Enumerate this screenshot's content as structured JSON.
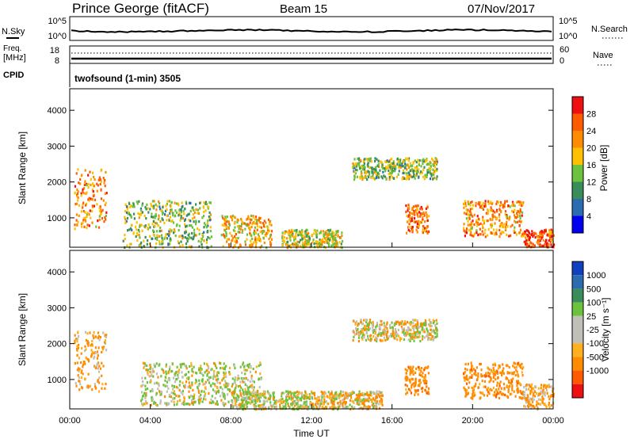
{
  "header": {
    "station": "Prince George (fitACF)",
    "beam": "Beam 15",
    "date": "07/Nov/2017"
  },
  "noise_panel": {
    "left_label": "N.Sky",
    "right_label": "N.Search",
    "left_ticks": [
      "10^5",
      "10^0"
    ],
    "right_ticks": [
      "10^5",
      "10^0"
    ]
  },
  "freq_panel": {
    "left_label_1": "Freq.",
    "left_label_2": "[MHz]",
    "right_label": "Nave",
    "left_ticks": [
      "18",
      "8"
    ],
    "right_ticks": [
      "60",
      "0"
    ],
    "cpid_label": "CPID",
    "cpid_value": "twofsound (1-min) 3505"
  },
  "colors": {
    "power": [
      "#0000ee",
      "#2b6cb0",
      "#3a8c5a",
      "#6cc23c",
      "#ffc000",
      "#ff8c00",
      "#ff5a00",
      "#ee1010"
    ],
    "velocity": [
      "#ee1010",
      "#ff5a00",
      "#ff8c00",
      "#ffb020",
      "#c0c0b8",
      "#c0c0b8",
      "#6cc23c",
      "#3a8c5a",
      "#2b6cb0",
      "#1040c0"
    ]
  },
  "chart_data": [
    {
      "type": "heatmap",
      "name": "power",
      "ylabel": "Slant Range [km]",
      "yticks": [
        "1000",
        "2000",
        "3000",
        "4000"
      ],
      "ylim": [
        180,
        4600
      ],
      "xlim": [
        0,
        24
      ],
      "xticks": [
        "00:00",
        "04:00",
        "08:00",
        "12:00",
        "16:00",
        "20:00",
        "00:00"
      ],
      "colorbar_label": "Power [dB]",
      "colorbar_ticks": [
        "4",
        "8",
        "12",
        "16",
        "20",
        "24",
        "28"
      ],
      "colorbar_range": [
        0,
        32
      ],
      "scatter_regions": [
        {
          "t": [
            0.2,
            1.8
          ],
          "r": [
            700,
            2400
          ],
          "power": 22
        },
        {
          "t": [
            2.6,
            7.0
          ],
          "r": [
            200,
            1500
          ],
          "power": 14
        },
        {
          "t": [
            7.5,
            10.0
          ],
          "r": [
            200,
            1100
          ],
          "power": 20
        },
        {
          "t": [
            10.5,
            13.5
          ],
          "r": [
            200,
            700
          ],
          "power": 16
        },
        {
          "t": [
            14.0,
            18.2
          ],
          "r": [
            2100,
            2700
          ],
          "power": 14
        },
        {
          "t": [
            16.6,
            17.8
          ],
          "r": [
            600,
            1400
          ],
          "power": 24
        },
        {
          "t": [
            19.5,
            22.5
          ],
          "r": [
            500,
            1500
          ],
          "power": 22
        },
        {
          "t": [
            22.5,
            24.0
          ],
          "r": [
            200,
            700
          ],
          "power": 26
        }
      ]
    },
    {
      "type": "heatmap",
      "name": "velocity",
      "ylabel": "Slant Range [km]",
      "yticks": [
        "1000",
        "2000",
        "3000",
        "4000"
      ],
      "ylim": [
        180,
        4600
      ],
      "xlim": [
        0,
        24
      ],
      "xticks": [
        "00:00",
        "04:00",
        "08:00",
        "12:00",
        "16:00",
        "20:00",
        "00:00"
      ],
      "xlabel": "Time UT",
      "colorbar_label": "Velocity [m s⁻¹]",
      "colorbar_ticks": [
        "1000",
        "500",
        "100",
        "25",
        "-25",
        "-100",
        "-500",
        "-1000"
      ],
      "scatter_regions": [
        {
          "t": [
            0.2,
            1.8
          ],
          "r": [
            700,
            2400
          ],
          "velocity": -150
        },
        {
          "t": [
            3.5,
            9.5
          ],
          "r": [
            300,
            1500
          ],
          "velocity": 60
        },
        {
          "t": [
            8.0,
            12.0
          ],
          "r": [
            200,
            700
          ],
          "velocity": 80
        },
        {
          "t": [
            12.0,
            15.5
          ],
          "r": [
            200,
            700
          ],
          "velocity": -60
        },
        {
          "t": [
            14.0,
            18.2
          ],
          "r": [
            2100,
            2700
          ],
          "velocity": 0
        },
        {
          "t": [
            16.6,
            17.8
          ],
          "r": [
            600,
            1400
          ],
          "velocity": -300
        },
        {
          "t": [
            19.5,
            22.5
          ],
          "r": [
            500,
            1500
          ],
          "velocity": -300
        },
        {
          "t": [
            22.5,
            24.0
          ],
          "r": [
            200,
            900
          ],
          "velocity": -150
        }
      ]
    }
  ]
}
